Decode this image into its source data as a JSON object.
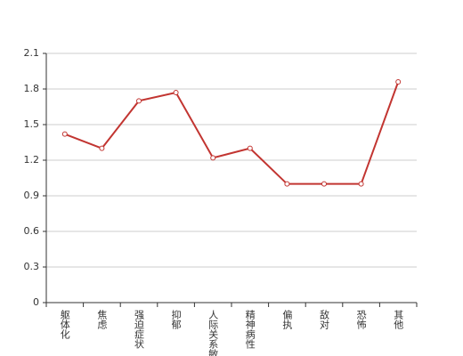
{
  "chart_data": {
    "type": "line",
    "categories": [
      "躯体化",
      "焦虑",
      "强迫症状",
      "抑郁",
      "人际关系敏感",
      "精神病性",
      "偏执",
      "敌对",
      "恐怖",
      "其他"
    ],
    "values": [
      1.42,
      1.3,
      1.7,
      1.77,
      1.22,
      1.3,
      1.0,
      1.0,
      1.0,
      1.86
    ],
    "color": "#c23531",
    "ylim": [
      0,
      2.1
    ],
    "yticks": [
      0,
      0.3,
      0.6,
      0.9,
      1.2,
      1.5,
      1.8,
      2.1
    ],
    "grid": true
  }
}
